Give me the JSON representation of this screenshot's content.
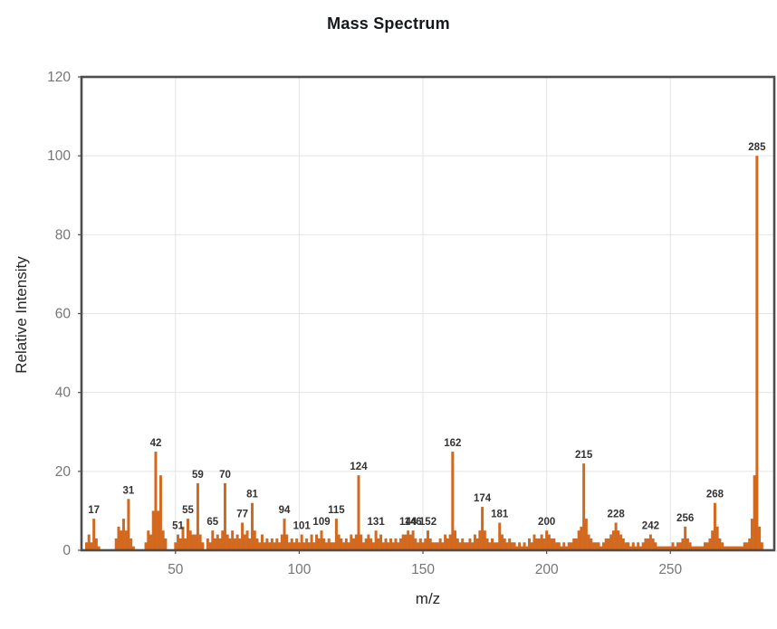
{
  "chart_data": {
    "type": "bar",
    "title": "Mass Spectrum",
    "xlabel": "m/z",
    "ylabel": "Relative Intensity",
    "xlim": [
      12,
      292
    ],
    "ylim": [
      0,
      120
    ],
    "x_ticks": [
      50,
      100,
      150,
      200,
      250
    ],
    "y_ticks": [
      0,
      20,
      40,
      60,
      80,
      100,
      120
    ],
    "grid": true,
    "legend": "none",
    "bar_color": "#D2691E",
    "labeled_peaks": [
      17,
      31,
      42,
      51,
      55,
      59,
      65,
      70,
      77,
      81,
      94,
      101,
      109,
      115,
      124,
      131,
      144,
      146,
      152,
      162,
      174,
      181,
      200,
      215,
      228,
      242,
      256,
      268,
      285
    ],
    "base_peak": {
      "mz": 285,
      "intensity": 100
    },
    "points": [
      [
        14,
        2
      ],
      [
        15,
        4
      ],
      [
        16,
        2
      ],
      [
        17,
        8
      ],
      [
        18,
        3
      ],
      [
        19,
        1
      ],
      [
        26,
        3
      ],
      [
        27,
        6
      ],
      [
        28,
        5
      ],
      [
        29,
        8
      ],
      [
        30,
        5
      ],
      [
        31,
        13
      ],
      [
        32,
        3
      ],
      [
        33,
        1
      ],
      [
        38,
        2
      ],
      [
        39,
        5
      ],
      [
        40,
        4
      ],
      [
        41,
        10
      ],
      [
        42,
        25
      ],
      [
        43,
        10
      ],
      [
        44,
        19
      ],
      [
        45,
        5
      ],
      [
        46,
        3
      ],
      [
        50,
        2
      ],
      [
        51,
        4
      ],
      [
        52,
        3
      ],
      [
        53,
        6
      ],
      [
        54,
        3
      ],
      [
        55,
        8
      ],
      [
        56,
        5
      ],
      [
        57,
        4
      ],
      [
        58,
        4
      ],
      [
        59,
        17
      ],
      [
        60,
        4
      ],
      [
        61,
        2
      ],
      [
        63,
        3
      ],
      [
        64,
        2
      ],
      [
        65,
        5
      ],
      [
        66,
        3
      ],
      [
        67,
        4
      ],
      [
        68,
        3
      ],
      [
        69,
        5
      ],
      [
        70,
        17
      ],
      [
        71,
        4
      ],
      [
        72,
        3
      ],
      [
        73,
        5
      ],
      [
        74,
        3
      ],
      [
        75,
        4
      ],
      [
        76,
        3
      ],
      [
        77,
        7
      ],
      [
        78,
        4
      ],
      [
        79,
        5
      ],
      [
        80,
        3
      ],
      [
        81,
        12
      ],
      [
        82,
        5
      ],
      [
        83,
        3
      ],
      [
        84,
        2
      ],
      [
        85,
        4
      ],
      [
        86,
        2
      ],
      [
        87,
        3
      ],
      [
        88,
        2
      ],
      [
        89,
        3
      ],
      [
        90,
        2
      ],
      [
        91,
        3
      ],
      [
        92,
        2
      ],
      [
        93,
        4
      ],
      [
        94,
        8
      ],
      [
        95,
        4
      ],
      [
        96,
        2
      ],
      [
        97,
        3
      ],
      [
        98,
        2
      ],
      [
        99,
        3
      ],
      [
        100,
        2
      ],
      [
        101,
        4
      ],
      [
        102,
        2
      ],
      [
        103,
        3
      ],
      [
        104,
        2
      ],
      [
        105,
        4
      ],
      [
        106,
        2
      ],
      [
        107,
        4
      ],
      [
        108,
        3
      ],
      [
        109,
        5
      ],
      [
        110,
        3
      ],
      [
        111,
        2
      ],
      [
        112,
        3
      ],
      [
        113,
        2
      ],
      [
        114,
        2
      ],
      [
        115,
        8
      ],
      [
        116,
        4
      ],
      [
        117,
        3
      ],
      [
        118,
        2
      ],
      [
        119,
        3
      ],
      [
        120,
        2
      ],
      [
        121,
        4
      ],
      [
        122,
        3
      ],
      [
        123,
        4
      ],
      [
        124,
        19
      ],
      [
        125,
        4
      ],
      [
        126,
        2
      ],
      [
        127,
        3
      ],
      [
        128,
        4
      ],
      [
        129,
        3
      ],
      [
        130,
        2
      ],
      [
        131,
        5
      ],
      [
        132,
        3
      ],
      [
        133,
        4
      ],
      [
        134,
        2
      ],
      [
        135,
        3
      ],
      [
        136,
        2
      ],
      [
        137,
        3
      ],
      [
        138,
        2
      ],
      [
        139,
        3
      ],
      [
        140,
        2
      ],
      [
        141,
        3
      ],
      [
        142,
        4
      ],
      [
        143,
        4
      ],
      [
        144,
        5
      ],
      [
        145,
        4
      ],
      [
        146,
        5
      ],
      [
        147,
        3
      ],
      [
        148,
        2
      ],
      [
        149,
        3
      ],
      [
        150,
        2
      ],
      [
        151,
        3
      ],
      [
        152,
        5
      ],
      [
        153,
        3
      ],
      [
        154,
        2
      ],
      [
        155,
        2
      ],
      [
        156,
        2
      ],
      [
        157,
        3
      ],
      [
        158,
        2
      ],
      [
        159,
        4
      ],
      [
        160,
        3
      ],
      [
        161,
        4
      ],
      [
        162,
        25
      ],
      [
        163,
        5
      ],
      [
        164,
        3
      ],
      [
        165,
        2
      ],
      [
        166,
        3
      ],
      [
        167,
        2
      ],
      [
        168,
        2
      ],
      [
        169,
        3
      ],
      [
        170,
        2
      ],
      [
        171,
        4
      ],
      [
        172,
        3
      ],
      [
        173,
        5
      ],
      [
        174,
        11
      ],
      [
        175,
        5
      ],
      [
        176,
        3
      ],
      [
        177,
        2
      ],
      [
        178,
        3
      ],
      [
        179,
        2
      ],
      [
        180,
        2
      ],
      [
        181,
        7
      ],
      [
        182,
        4
      ],
      [
        183,
        3
      ],
      [
        184,
        2
      ],
      [
        185,
        3
      ],
      [
        186,
        2
      ],
      [
        187,
        2
      ],
      [
        188,
        1
      ],
      [
        189,
        2
      ],
      [
        190,
        1
      ],
      [
        191,
        2
      ],
      [
        192,
        1
      ],
      [
        193,
        3
      ],
      [
        194,
        2
      ],
      [
        195,
        4
      ],
      [
        196,
        3
      ],
      [
        197,
        3
      ],
      [
        198,
        4
      ],
      [
        199,
        3
      ],
      [
        200,
        5
      ],
      [
        201,
        4
      ],
      [
        202,
        3
      ],
      [
        203,
        3
      ],
      [
        204,
        2
      ],
      [
        205,
        2
      ],
      [
        206,
        1
      ],
      [
        207,
        2
      ],
      [
        208,
        1
      ],
      [
        209,
        2
      ],
      [
        210,
        2
      ],
      [
        211,
        3
      ],
      [
        212,
        3
      ],
      [
        213,
        5
      ],
      [
        214,
        6
      ],
      [
        215,
        22
      ],
      [
        216,
        8
      ],
      [
        217,
        4
      ],
      [
        218,
        3
      ],
      [
        219,
        2
      ],
      [
        220,
        2
      ],
      [
        221,
        2
      ],
      [
        222,
        1
      ],
      [
        223,
        2
      ],
      [
        224,
        3
      ],
      [
        225,
        3
      ],
      [
        226,
        4
      ],
      [
        227,
        5
      ],
      [
        228,
        7
      ],
      [
        229,
        5
      ],
      [
        230,
        4
      ],
      [
        231,
        3
      ],
      [
        232,
        2
      ],
      [
        233,
        2
      ],
      [
        234,
        1
      ],
      [
        235,
        2
      ],
      [
        236,
        1
      ],
      [
        237,
        2
      ],
      [
        238,
        1
      ],
      [
        239,
        2
      ],
      [
        240,
        3
      ],
      [
        241,
        3
      ],
      [
        242,
        4
      ],
      [
        243,
        3
      ],
      [
        244,
        2
      ],
      [
        245,
        1
      ],
      [
        246,
        1
      ],
      [
        247,
        1
      ],
      [
        248,
        1
      ],
      [
        249,
        1
      ],
      [
        250,
        1
      ],
      [
        251,
        2
      ],
      [
        252,
        1
      ],
      [
        253,
        2
      ],
      [
        254,
        2
      ],
      [
        255,
        3
      ],
      [
        256,
        6
      ],
      [
        257,
        3
      ],
      [
        258,
        2
      ],
      [
        259,
        1
      ],
      [
        260,
        1
      ],
      [
        261,
        1
      ],
      [
        262,
        1
      ],
      [
        263,
        1
      ],
      [
        264,
        2
      ],
      [
        265,
        2
      ],
      [
        266,
        3
      ],
      [
        267,
        5
      ],
      [
        268,
        12
      ],
      [
        269,
        6
      ],
      [
        270,
        3
      ],
      [
        271,
        2
      ],
      [
        272,
        1
      ],
      [
        273,
        1
      ],
      [
        274,
        1
      ],
      [
        275,
        1
      ],
      [
        276,
        1
      ],
      [
        277,
        1
      ],
      [
        278,
        1
      ],
      [
        279,
        1
      ],
      [
        280,
        2
      ],
      [
        281,
        2
      ],
      [
        282,
        3
      ],
      [
        283,
        8
      ],
      [
        284,
        19
      ],
      [
        285,
        100
      ],
      [
        286,
        6
      ],
      [
        287,
        2
      ]
    ]
  },
  "colors": {
    "bar": "#D2691E",
    "grid": "#e4e4e4",
    "spine": "#4d4d4d",
    "tick_label": "#767676",
    "peak_label": "#333333",
    "title": "#15181c",
    "axis_label": "#262626",
    "background": "#ffffff"
  }
}
